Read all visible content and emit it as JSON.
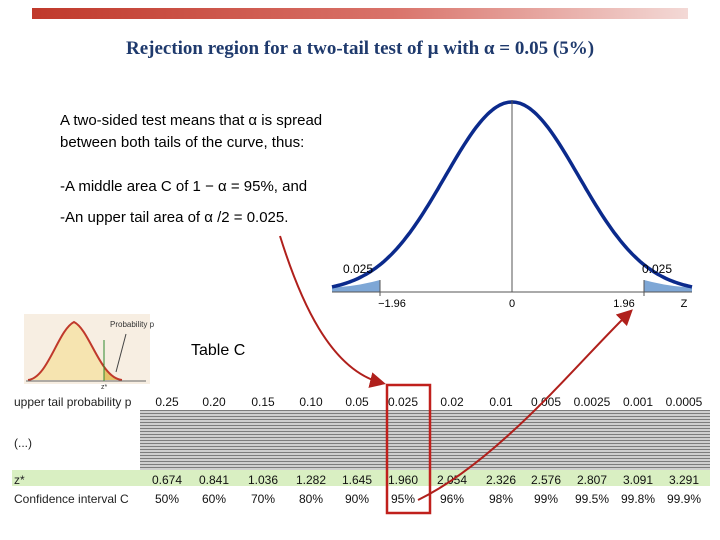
{
  "title": "Rejection region for a two-tail test of µ with α = 0.05 (5%)",
  "body": {
    "line1a": "A two-sided test means that α is spread",
    "line1b": "between both tails of the curve, thus:",
    "line2": "-A middle area C of 1 − α = 95%, and",
    "line3": "-An upper tail area of α /2 = 0.025."
  },
  "curve": {
    "left_tail_label": "0.025",
    "right_tail_label": "0.025",
    "ticks": [
      "−1.96",
      "0",
      "1.96"
    ],
    "axis_label": "Z"
  },
  "mini_chart": {
    "label": "Probability p",
    "axis_label": "z*"
  },
  "table_label": "Table C",
  "table": {
    "row1_header": "upper tail probability p",
    "ellipsis": "(...)",
    "row2_header": "z*",
    "row3_header": "Confidence interval C",
    "p_values": [
      "0.25",
      "0.20",
      "0.15",
      "0.10",
      "0.05",
      "0.025",
      "0.02",
      "0.01",
      "0.005",
      "0.0025",
      "0.001",
      "0.0005"
    ],
    "z_values": [
      "0.674",
      "0.841",
      "1.036",
      "1.282",
      "1.645",
      "1.960",
      "2.054",
      "2.326",
      "2.576",
      "2.807",
      "3.091",
      "3.291"
    ],
    "c_values": [
      "50%",
      "60%",
      "70%",
      "80%",
      "90%",
      "95%",
      "96%",
      "98%",
      "99%",
      "99.5%",
      "99.8%",
      "99.9%"
    ],
    "highlight_index": 5
  },
  "colors": {
    "title": "#1f3a6d",
    "curve": "#0b2a8c",
    "tail_fill": "#7ea7d6",
    "arrow": "#b0201c",
    "highlight_box": "#c0201c",
    "green_band": "#d9efc2"
  }
}
